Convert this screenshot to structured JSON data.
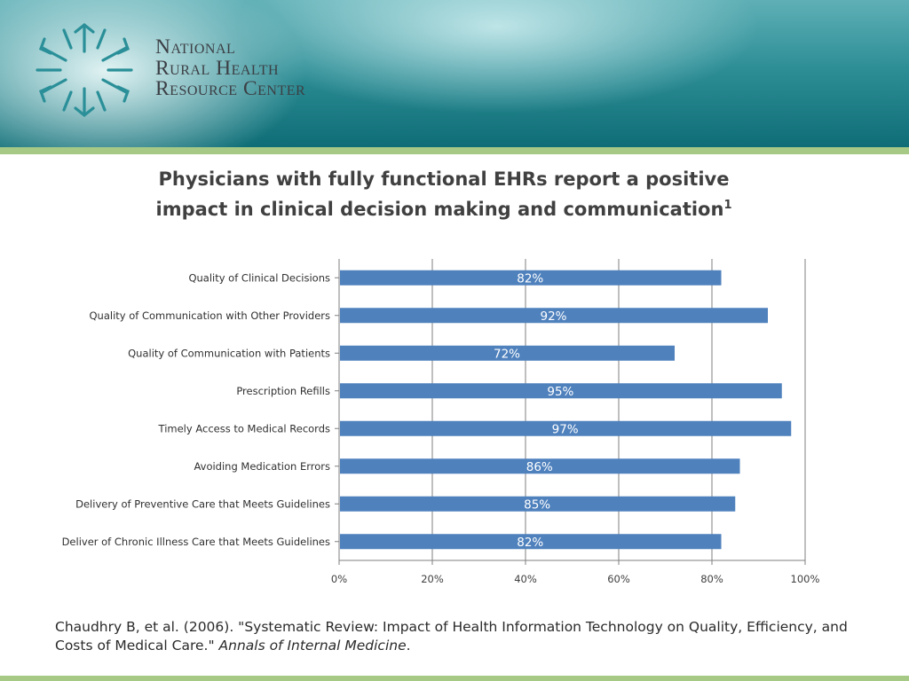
{
  "header": {
    "org_line_1": "National",
    "org_line_2": "Rural Health",
    "org_line_3": "Resource Center"
  },
  "colors": {
    "bar": "#4f81bd",
    "accent_stripe": "#a6ca86",
    "header_teal": "#1a7e87",
    "grid": "#7f7f7f"
  },
  "chart_data": {
    "type": "bar",
    "orientation": "horizontal",
    "title": "Physicians with fully functional EHRs report a positive impact in clinical decision making and communication",
    "title_superscript": "1",
    "categories": [
      "Quality of Clinical Decisions",
      "Quality of Communication with Other Providers",
      "Quality of Communication with Patients",
      "Prescription Refills",
      "Timely Access to Medical Records",
      "Avoiding Medication Errors",
      "Delivery of Preventive Care that Meets Guidelines",
      "Deliver of Chronic Illness Care that Meets Guidelines"
    ],
    "values": [
      82,
      92,
      72,
      95,
      97,
      86,
      85,
      82
    ],
    "data_labels": [
      "82%",
      "92%",
      "72%",
      "95%",
      "97%",
      "86%",
      "85%",
      "82%"
    ],
    "xlim": [
      0,
      100
    ],
    "x_ticks": [
      "0%",
      "20%",
      "40%",
      "60%",
      "80%",
      "100%"
    ],
    "grid": "vertical",
    "legend": "none"
  },
  "citation": {
    "text": "Chaudhry B, et al. (2006). \"Systematic Review: Impact of Health Information Technology on Quality, Efficiency, and Costs of Medical Care.\" ",
    "journal": "Annals of Internal Medicine",
    "end": "."
  }
}
